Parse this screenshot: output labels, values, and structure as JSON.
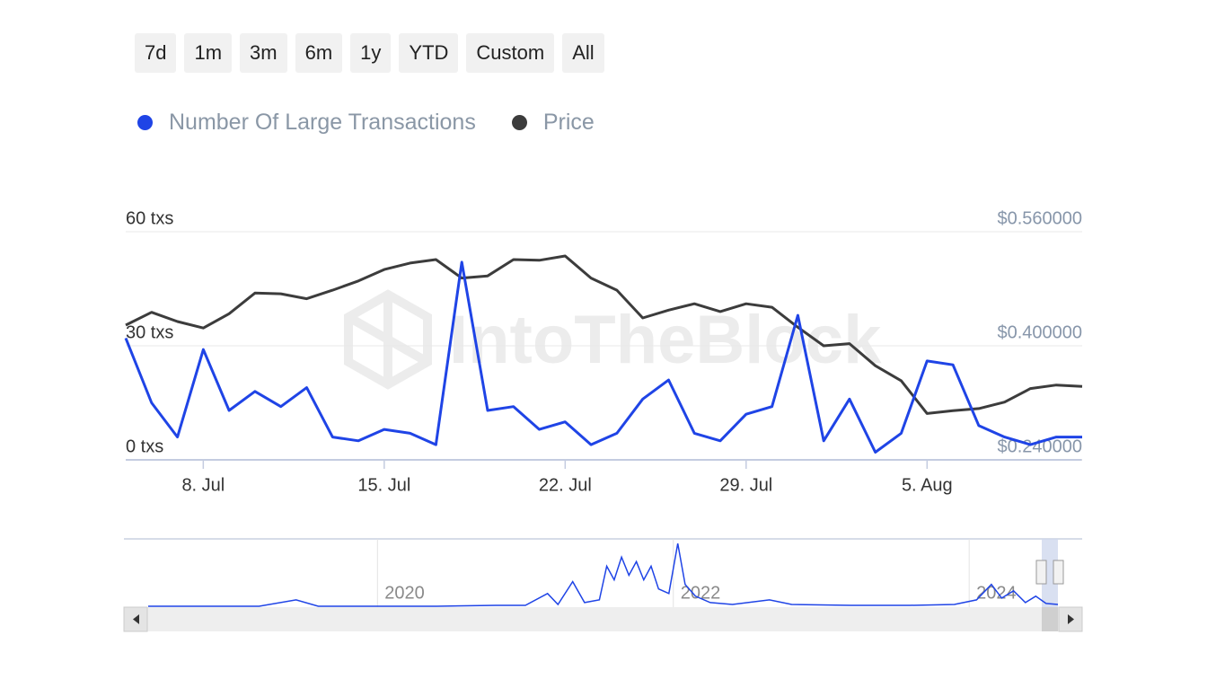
{
  "range_buttons": [
    "7d",
    "1m",
    "3m",
    "6m",
    "1y",
    "YTD",
    "Custom",
    "All"
  ],
  "watermark": "IntoTheBlock",
  "chart_data": [
    {
      "type": "line",
      "categories": [
        null,
        null,
        null,
        "8. Jul",
        null,
        null,
        null,
        null,
        null,
        null,
        "15. Jul",
        null,
        null,
        null,
        null,
        null,
        null,
        "22. Jul",
        null,
        null,
        null,
        null,
        null,
        null,
        "29. Jul",
        null,
        null,
        null,
        null,
        null,
        null,
        "5. Aug",
        null,
        null,
        null,
        null,
        null,
        null
      ],
      "series": [
        {
          "name": "Number Of Large Transactions",
          "color": "#1f44e6",
          "values": [
            32,
            15,
            6,
            29,
            13,
            18,
            14,
            19,
            6,
            5,
            8,
            7,
            4,
            52,
            13,
            14,
            8,
            10,
            4,
            7,
            16,
            21,
            7,
            5,
            12,
            14,
            38,
            5,
            16,
            2,
            7,
            26,
            25,
            9,
            6,
            4,
            6,
            6
          ]
        },
        {
          "name": "Price",
          "color": "#3c3c3c",
          "axis": "y2",
          "values": [
            0.429,
            0.447,
            0.434,
            0.425,
            0.445,
            0.474,
            0.473,
            0.466,
            0.478,
            0.491,
            0.507,
            0.516,
            0.521,
            0.495,
            0.498,
            0.521,
            0.52,
            0.526,
            0.495,
            0.478,
            0.439,
            0.45,
            0.459,
            0.448,
            0.459,
            0.454,
            0.426,
            0.4,
            0.403,
            0.372,
            0.351,
            0.305,
            0.309,
            0.312,
            0.321,
            0.34,
            0.345,
            0.343
          ]
        }
      ],
      "ylim": [
        0,
        60
      ],
      "yticks": [
        {
          "value": 0,
          "label": "0 txs"
        },
        {
          "value": 30,
          "label": "30 txs"
        },
        {
          "value": 60,
          "label": "60 txs"
        }
      ],
      "y2lim": [
        0.24,
        0.56
      ],
      "y2ticks": [
        {
          "value": 0.24,
          "label": "$0.240000"
        },
        {
          "value": 0.4,
          "label": "$0.400000"
        },
        {
          "value": 0.56,
          "label": "$0.560000"
        }
      ],
      "grid": true
    },
    {
      "type": "area",
      "x": [
        2018.45,
        2018.8,
        2019.2,
        2019.45,
        2019.6,
        2020.0,
        2020.4,
        2020.8,
        2021.0,
        2021.15,
        2021.22,
        2021.32,
        2021.4,
        2021.5,
        2021.55,
        2021.6,
        2021.65,
        2021.7,
        2021.75,
        2021.8,
        2021.85,
        2021.9,
        2021.97,
        2022.03,
        2022.08,
        2022.15,
        2022.25,
        2022.4,
        2022.65,
        2022.8,
        2023.2,
        2023.6,
        2023.9,
        2024.05,
        2024.15,
        2024.22,
        2024.3,
        2024.38,
        2024.45,
        2024.52,
        2024.6
      ],
      "values": [
        1,
        1,
        1,
        8,
        1,
        1,
        1,
        2,
        2,
        15,
        3,
        28,
        5,
        8,
        45,
        30,
        55,
        35,
        50,
        30,
        45,
        20,
        15,
        70,
        25,
        12,
        5,
        3,
        8,
        3,
        2,
        2,
        3,
        8,
        25,
        10,
        18,
        5,
        12,
        4,
        3
      ],
      "color": "#1f44e6",
      "xlim": [
        2018.45,
        2024.6
      ],
      "xticks": [
        2020,
        2022,
        2024
      ],
      "ylim": [
        0,
        75
      ]
    }
  ]
}
